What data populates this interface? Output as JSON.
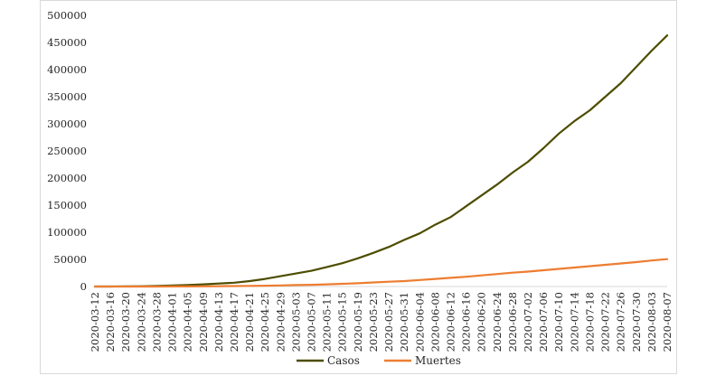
{
  "chart_data": {
    "type": "line",
    "title": "",
    "xlabel": "",
    "ylabel": "",
    "ylim": [
      0,
      500000
    ],
    "yticks": [
      0,
      50000,
      100000,
      150000,
      200000,
      250000,
      300000,
      350000,
      400000,
      450000,
      500000
    ],
    "xticks": [
      "2020-03-12",
      "2020-03-16",
      "2020-03-20",
      "2020-03-24",
      "2020-03-28",
      "2020-04-01",
      "2020-04-05",
      "2020-04-09",
      "2020-04-13",
      "2020-04-17",
      "2020-04-21",
      "2020-04-25",
      "2020-04-29",
      "2020-05-03",
      "2020-05-07",
      "2020-05-11",
      "2020-05-15",
      "2020-05-19",
      "2020-05-23",
      "2020-05-27",
      "2020-05-31",
      "2020-06-04",
      "2020-06-08",
      "2020-06-12",
      "2020-06-16",
      "2020-06-20",
      "2020-06-24",
      "2020-06-28",
      "2020-07-02",
      "2020-07-06",
      "2020-07-10",
      "2020-07-14",
      "2020-07-18",
      "2020-07-22",
      "2020-07-26",
      "2020-07-30",
      "2020-08-03",
      "2020-08-07"
    ],
    "x": [
      "2020-03-12",
      "2020-03-16",
      "2020-03-20",
      "2020-03-24",
      "2020-03-28",
      "2020-04-01",
      "2020-04-05",
      "2020-04-09",
      "2020-04-13",
      "2020-04-17",
      "2020-04-21",
      "2020-04-25",
      "2020-04-29",
      "2020-05-03",
      "2020-05-07",
      "2020-05-11",
      "2020-05-15",
      "2020-05-19",
      "2020-05-23",
      "2020-05-27",
      "2020-05-31",
      "2020-06-04",
      "2020-06-08",
      "2020-06-12",
      "2020-06-16",
      "2020-06-20",
      "2020-06-24",
      "2020-06-28",
      "2020-07-02",
      "2020-07-06",
      "2020-07-10",
      "2020-07-14",
      "2020-07-18",
      "2020-07-22",
      "2020-07-26",
      "2020-07-30",
      "2020-08-03",
      "2020-08-07"
    ],
    "grid": false,
    "legend": "bottom",
    "series": [
      {
        "name": "Casos",
        "color": "#4d4d00",
        "values": [
          10,
          80,
          300,
          500,
          1200,
          1800,
          2800,
          4000,
          5500,
          7000,
          10000,
          14000,
          19000,
          24000,
          29000,
          36000,
          43000,
          52000,
          62000,
          73000,
          86000,
          98000,
          114000,
          128000,
          148000,
          168000,
          188000,
          210000,
          230000,
          255000,
          282000,
          305000,
          325000,
          350000,
          375000,
          405000,
          435000,
          463000
        ]
      },
      {
        "name": "Muertes",
        "color": "#ed7d31",
        "values": [
          0,
          5,
          20,
          40,
          80,
          150,
          250,
          400,
          600,
          800,
          1200,
          1500,
          2000,
          2600,
          3200,
          4000,
          5000,
          6000,
          7500,
          8800,
          10000,
          12000,
          14000,
          16000,
          18000,
          20500,
          23000,
          25500,
          27500,
          30000,
          32500,
          35000,
          37500,
          40000,
          42500,
          45000,
          48000,
          50500
        ]
      }
    ]
  }
}
